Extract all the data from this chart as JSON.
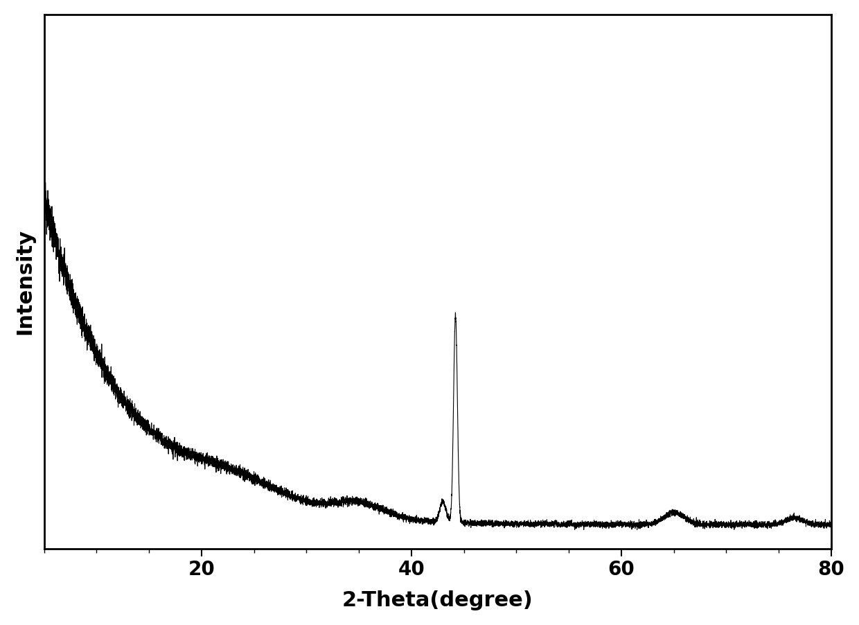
{
  "xlabel": "2-Theta(degree)",
  "ylabel": "Intensity",
  "xlim": [
    5,
    80
  ],
  "x_ticks": [
    20,
    40,
    60,
    80
  ],
  "background_color": "#ffffff",
  "line_color": "#000000",
  "line_width": 0.8,
  "xlabel_fontsize": 22,
  "ylabel_fontsize": 22,
  "tick_fontsize": 20,
  "tick_label_weight": "bold",
  "axis_label_weight": "bold",
  "ylim": [
    0,
    9000
  ]
}
